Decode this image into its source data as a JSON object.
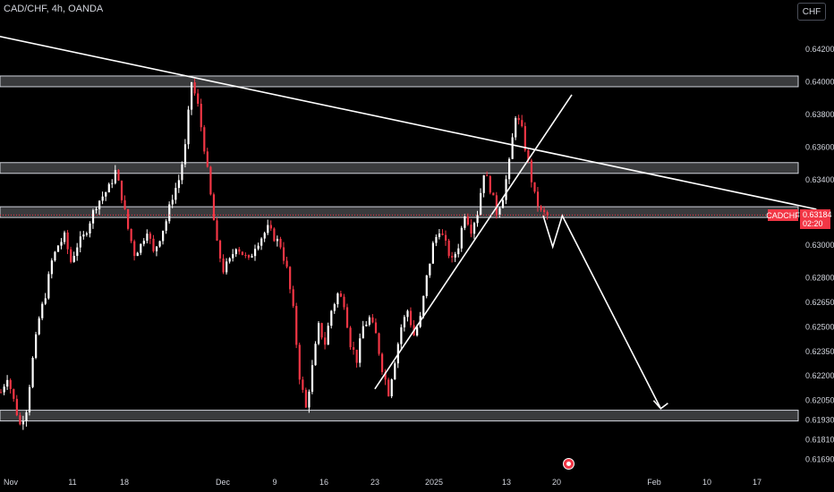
{
  "header": {
    "title": "CAD/CHF, 4h, OANDA"
  },
  "currency_button": {
    "label": "CHF"
  },
  "last_price": {
    "symbol": "CADCHF",
    "price": "0.63184",
    "countdown": "02:20"
  },
  "colors": {
    "up": "#ffffff",
    "down": "#f23645",
    "background": "#000000",
    "zone": "#d1d4dc",
    "drawing": "#ffffff"
  },
  "event_icon": "economic-event-icon",
  "chart_data": {
    "type": "candlestick",
    "symbol": "CAD/CHF",
    "timeframe": "4h",
    "source": "OANDA",
    "y_ticks": [
      "0.64200",
      "0.64000",
      "0.63800",
      "0.63600",
      "0.63400",
      "0.63184",
      "0.63000",
      "0.62800",
      "0.62650",
      "0.62500",
      "0.62350",
      "0.62200",
      "0.62050",
      "0.61930",
      "0.61810",
      "0.61690"
    ],
    "x_ticks": [
      "Nov",
      "11",
      "18",
      "Dec",
      "9",
      "16",
      "23",
      "2025",
      "13",
      "20",
      "Feb",
      "10",
      "17"
    ],
    "series": [
      {
        "close_path": [
          [
            0,
            0.621
          ],
          [
            2,
            0.622
          ],
          [
            4,
            0.6205
          ],
          [
            6,
            0.619
          ],
          [
            8,
            0.62
          ],
          [
            10,
            0.623
          ],
          [
            12,
            0.6255
          ],
          [
            14,
            0.627
          ],
          [
            16,
            0.629
          ],
          [
            18,
            0.63
          ],
          [
            20,
            0.6305
          ],
          [
            22,
            0.629
          ],
          [
            24,
            0.63
          ],
          [
            26,
            0.6305
          ],
          [
            28,
            0.6315
          ],
          [
            30,
            0.6325
          ],
          [
            32,
            0.633
          ],
          [
            34,
            0.6335
          ],
          [
            36,
            0.6345
          ],
          [
            38,
            0.633
          ],
          [
            40,
            0.631
          ],
          [
            42,
            0.6295
          ],
          [
            44,
            0.63
          ],
          [
            46,
            0.631
          ],
          [
            48,
            0.6295
          ],
          [
            50,
            0.6305
          ],
          [
            52,
            0.6315
          ],
          [
            54,
            0.633
          ],
          [
            56,
            0.634
          ],
          [
            58,
            0.636
          ],
          [
            60,
            0.64
          ],
          [
            62,
            0.6385
          ],
          [
            64,
            0.636
          ],
          [
            66,
            0.633
          ],
          [
            68,
            0.63
          ],
          [
            70,
            0.6285
          ],
          [
            72,
            0.629
          ],
          [
            74,
            0.63
          ],
          [
            76,
            0.6295
          ],
          [
            78,
            0.629
          ],
          [
            80,
            0.63
          ],
          [
            82,
            0.6305
          ],
          [
            84,
            0.631
          ],
          [
            86,
            0.6305
          ],
          [
            88,
            0.63
          ],
          [
            90,
            0.6285
          ],
          [
            92,
            0.626
          ],
          [
            94,
            0.622
          ],
          [
            96,
            0.62
          ],
          [
            98,
            0.6225
          ],
          [
            100,
            0.625
          ],
          [
            102,
            0.624
          ],
          [
            104,
            0.626
          ],
          [
            106,
            0.627
          ],
          [
            108,
            0.6265
          ],
          [
            110,
            0.624
          ],
          [
            112,
            0.623
          ],
          [
            114,
            0.625
          ],
          [
            116,
            0.6255
          ],
          [
            118,
            0.6245
          ],
          [
            120,
            0.6225
          ],
          [
            122,
            0.621
          ],
          [
            124,
            0.623
          ],
          [
            126,
            0.625
          ],
          [
            128,
            0.626
          ],
          [
            130,
            0.6245
          ],
          [
            132,
            0.6255
          ],
          [
            134,
            0.628
          ],
          [
            136,
            0.63
          ],
          [
            138,
            0.631
          ],
          [
            140,
            0.63
          ],
          [
            142,
            0.629
          ],
          [
            144,
            0.63
          ],
          [
            146,
            0.632
          ],
          [
            148,
            0.631
          ],
          [
            150,
            0.632
          ],
          [
            152,
            0.6345
          ],
          [
            154,
            0.6335
          ],
          [
            156,
            0.632
          ],
          [
            158,
            0.633
          ],
          [
            160,
            0.635
          ],
          [
            162,
            0.638
          ],
          [
            164,
            0.637
          ],
          [
            166,
            0.635
          ],
          [
            168,
            0.633
          ],
          [
            170,
            0.632
          ],
          [
            172,
            0.6318
          ]
        ]
      }
    ],
    "zones": [
      [
        0.63985,
        0.64035
      ],
      [
        0.63485,
        0.63505
      ],
      [
        0.6318,
        0.63235
      ],
      [
        0.6193,
        0.6199
      ]
    ],
    "trendlines": [
      {
        "name": "descending-resistance",
        "from": [
          -30,
          0.644
        ],
        "to": [
          257,
          0.6322
        ]
      },
      {
        "name": "ascending-support",
        "from": [
          118,
          0.6212
        ],
        "to": [
          180,
          0.6392
        ]
      }
    ],
    "projection_path": [
      [
        171,
        0.6318
      ],
      [
        174,
        0.6299
      ],
      [
        177,
        0.6318
      ],
      [
        208,
        0.62
      ]
    ],
    "ylim": [
      0.6161,
      0.645
    ]
  }
}
